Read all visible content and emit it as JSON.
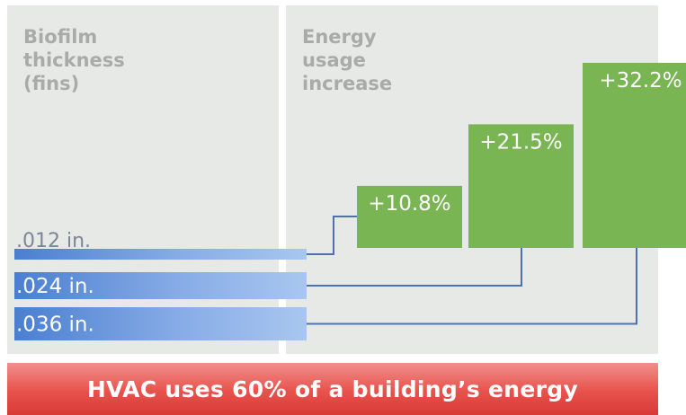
{
  "chart_data": {
    "type": "bar",
    "categories": [
      ".012 in.",
      ".024 in.",
      ".036 in."
    ],
    "values": [
      10.8,
      21.5,
      32.2
    ],
    "data_labels": [
      "+10.8%",
      "+21.5%",
      "+32.2%"
    ],
    "left_heading": "Biofilm\nthickness\n(fins)",
    "right_heading": "Energy\nusage\nincrease",
    "ylim": [
      0,
      34
    ],
    "grid": false,
    "colors": {
      "bar": "#7ab553",
      "thickness_bar_light": "#a8c6ef",
      "thickness_bar_dark": "#4a7fd0",
      "connector": "#4f72ad",
      "label_on_light": "#1f3f8a",
      "label_on_dark": "#7a8799"
    }
  },
  "footer": {
    "banner_text": "HVAC uses 60% of a building’s energy",
    "banner_color": "#e8524c"
  }
}
